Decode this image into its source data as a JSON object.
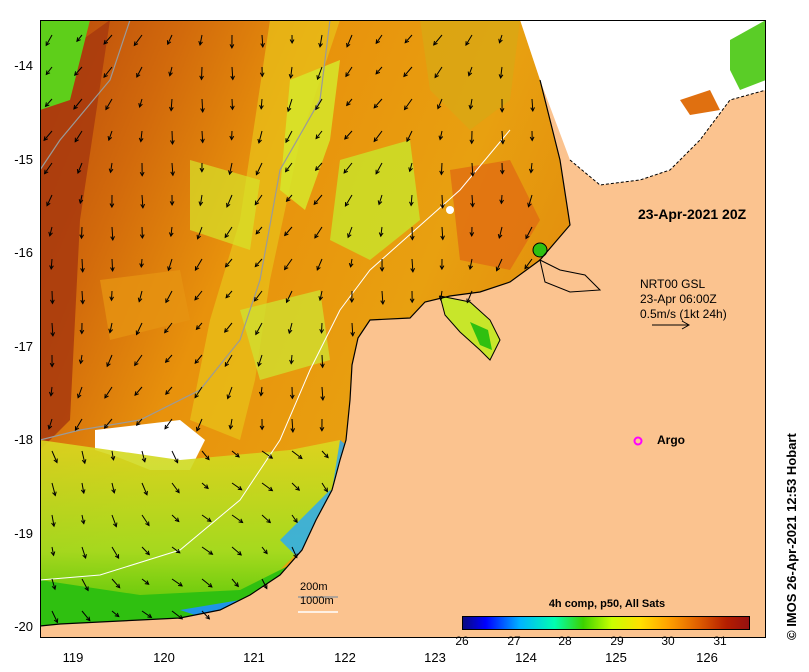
{
  "axes": {
    "lat_ticks": [
      "-14",
      "-15",
      "-16",
      "-17",
      "-18",
      "-19",
      "-20"
    ],
    "lon_ticks": [
      "119",
      "120",
      "121",
      "122",
      "123",
      "124",
      "125",
      "126"
    ]
  },
  "annotations": {
    "time": "23-Apr-2021 20Z",
    "info_line1": "NRT00 GSL",
    "info_line2": "23-Apr 06:00Z",
    "info_line3": "0.5m/s (1kt 24h)",
    "argo": "Argo",
    "depth_200": "200m",
    "depth_1000": "1000m",
    "stamp": "© IMOS 26-Apr-2021 12:53 Hobart"
  },
  "colorbar": {
    "title": "4h comp, p50, All Sats",
    "ticks": [
      "26",
      "27",
      "28",
      "29",
      "30",
      "31"
    ],
    "min": 26,
    "max": 31.6
  },
  "colors": {
    "land": "#fbc38f",
    "cloud": "#ffffff",
    "warm": "#e07a0a",
    "hot": "#b0400a",
    "mid": "#f2b800",
    "cool": "#c8e62a",
    "cold": "#3cc800",
    "coast_blue": "#1ea0ff",
    "argo": "#ff00ff"
  },
  "map": {
    "lon_range": [
      118.67,
      126.69
    ],
    "lat_range": [
      -20.1,
      -13.48
    ],
    "argo_position": [
      125.3,
      -18.0
    ]
  }
}
